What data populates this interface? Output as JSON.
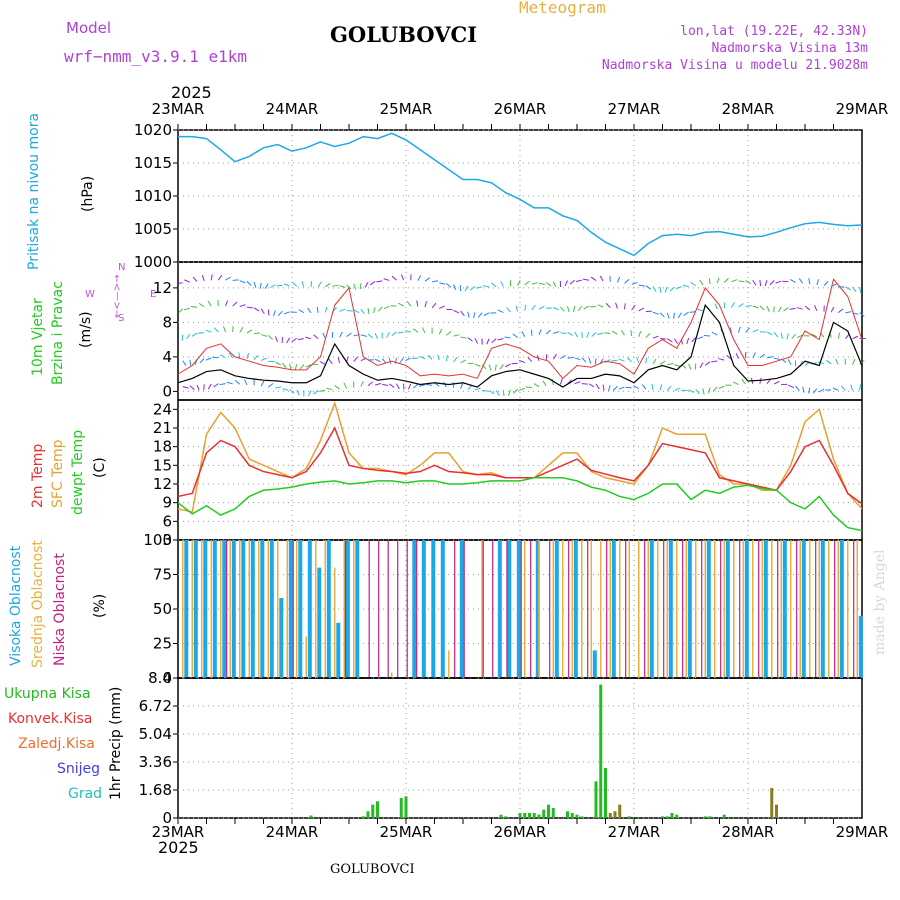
{
  "header": {
    "model_label": "Model",
    "model_value": "wrf−nmm_v3.9.1  e1km",
    "meteogram_label": "Meteogram",
    "station_title": "GOLUBOVCI",
    "coords": "lon,lat (19.22E, 42.33N)",
    "elevation": "Nadmorska Visina 13m",
    "model_elevation": "Nadmorska Visina u modelu 21.9028m",
    "year_top": "2025",
    "year_bottom": "2025",
    "footer_title": "GOLUBOVCI",
    "watermark": "made by Angel"
  },
  "colors": {
    "pressure": "#1ca8e8",
    "wind_label": "#22cc22",
    "temp_2m": "#e83030",
    "temp_sfc": "#e8a030",
    "dewpoint": "#22cc22",
    "cloud_high": "#1ca8e8",
    "cloud_mid": "#e8b040",
    "cloud_low": "#c02080",
    "rain_total": "#22bb22",
    "rain_conv": "#e83030",
    "rain_frz": "#e87030",
    "snow": "#4040e0",
    "hail": "#20c0c0",
    "compass": "#c050e0"
  },
  "x_axis": {
    "dates": [
      "23MAR",
      "24MAR",
      "25MAR",
      "26MAR",
      "27MAR",
      "28MAR",
      "29MAR"
    ]
  },
  "panels": {
    "pressure": {
      "label": "Pritisak na nivou mora",
      "unit": "(hPa)"
    },
    "wind": {
      "label1": "10m Vjetar",
      "label2": "Brzina i Pravac",
      "unit": "(m/s)",
      "compass_top": "←<—>→",
      "compass_w": "W",
      "compass_e": "E",
      "compass_n": "N",
      "compass_s": "S"
    },
    "temp": {
      "label_2m": "2m Temp",
      "label_sfc": "SFC Temp",
      "label_dew": "dewpt Temp",
      "unit": "(C)"
    },
    "cloud": {
      "label_high": "Visoka Oblacnost",
      "label_mid": "Srednja Oblacnost",
      "label_low": "Niska Oblacnost",
      "unit": "(%)"
    },
    "precip": {
      "legend": [
        "Ukupna Kisa",
        "Konvek.Kisa",
        "Zaledj.Kisa",
        "Snijeg",
        "Grad"
      ],
      "unit": "1hr Precip (mm)"
    }
  },
  "chart_data": [
    {
      "type": "line",
      "name": "pressure",
      "x": [
        0,
        3,
        6,
        9,
        12,
        15,
        18,
        21,
        24,
        27,
        30,
        33,
        36,
        39,
        42,
        45,
        48,
        51,
        54,
        57,
        60,
        63,
        66,
        69,
        72,
        75,
        78,
        81,
        84,
        87,
        90,
        93,
        96,
        99,
        102,
        105,
        108,
        111,
        114,
        117,
        120,
        123,
        126,
        129,
        132,
        135,
        138,
        141,
        144
      ],
      "values": [
        1019,
        1019,
        1018.7,
        1017,
        1015.2,
        1016,
        1017.3,
        1017.8,
        1016.8,
        1017.3,
        1018.2,
        1017.5,
        1018,
        1019,
        1018.7,
        1019.5,
        1018.5,
        1017,
        1015.5,
        1014,
        1012.5,
        1012.5,
        1012,
        1010.5,
        1009.5,
        1008.2,
        1008.2,
        1007,
        1006.3,
        1004.5,
        1003,
        1002,
        1001,
        1002.8,
        1004,
        1004.2,
        1004,
        1004.5,
        1004.6,
        1004.2,
        1003.8,
        1003.9,
        1004.5,
        1005.2,
        1005.8,
        1006,
        1005.7,
        1005.5,
        1005.6
      ],
      "ylim": [
        1000,
        1020
      ],
      "yticks": [
        1000,
        1005,
        1010,
        1015,
        1020
      ]
    },
    {
      "type": "line",
      "name": "wind",
      "ylim": [
        -1,
        15
      ],
      "yticks": [
        0,
        4,
        8,
        12
      ],
      "series": [
        {
          "name": "speed",
          "x": [
            0,
            3,
            6,
            9,
            12,
            15,
            18,
            21,
            24,
            27,
            30,
            33,
            36,
            39,
            42,
            45,
            48,
            51,
            54,
            57,
            60,
            63,
            66,
            69,
            72,
            75,
            78,
            81,
            84,
            87,
            90,
            93,
            96,
            99,
            102,
            105,
            108,
            111,
            114,
            117,
            120,
            123,
            126,
            129,
            132,
            135,
            138,
            141,
            144
          ],
          "values": [
            1,
            1.5,
            2.3,
            2.5,
            1.8,
            1.5,
            1.3,
            1.2,
            1,
            1,
            1.8,
            5.5,
            3,
            2,
            1.3,
            1.5,
            1.2,
            0.8,
            1,
            0.8,
            1,
            0.5,
            1.8,
            2.3,
            2.5,
            2,
            1.5,
            0.5,
            1.5,
            1.5,
            2,
            1.8,
            1,
            2.5,
            3,
            2.5,
            4,
            10,
            8,
            3,
            1.2,
            1.3,
            1.5,
            2,
            3.5,
            3,
            8,
            7,
            3
          ]
        },
        {
          "name": "gust",
          "x": [
            0,
            3,
            6,
            9,
            12,
            15,
            18,
            21,
            24,
            27,
            30,
            33,
            36,
            39,
            42,
            45,
            48,
            51,
            54,
            57,
            60,
            63,
            66,
            69,
            72,
            75,
            78,
            81,
            84,
            87,
            90,
            93,
            96,
            99,
            102,
            105,
            108,
            111,
            114,
            117,
            120,
            123,
            126,
            129,
            132,
            135,
            138,
            141,
            144
          ],
          "values": [
            2,
            3,
            5,
            5.5,
            4,
            3.5,
            3,
            2.8,
            2.5,
            2.5,
            4,
            10,
            12,
            4,
            3,
            3.5,
            3,
            1.8,
            2,
            1.8,
            2,
            1.5,
            5,
            5.5,
            5,
            4,
            3.5,
            1.5,
            3,
            2.8,
            3.5,
            3.2,
            2,
            5,
            6,
            5,
            8,
            12,
            10,
            6,
            3,
            3,
            3.5,
            4,
            7,
            6,
            13,
            11,
            6
          ]
        }
      ]
    },
    {
      "type": "line",
      "name": "temperature",
      "ylim": [
        3,
        25.5
      ],
      "yticks": [
        3,
        6,
        9,
        12,
        15,
        18,
        21,
        24
      ],
      "x": [
        0,
        3,
        6,
        9,
        12,
        15,
        18,
        21,
        24,
        27,
        30,
        33,
        36,
        39,
        42,
        45,
        48,
        51,
        54,
        57,
        60,
        63,
        66,
        69,
        72,
        75,
        78,
        81,
        84,
        87,
        90,
        93,
        96,
        99,
        102,
        105,
        108,
        111,
        114,
        117,
        120,
        123,
        126,
        129,
        132,
        135,
        138,
        141,
        144
      ],
      "series": [
        {
          "name": "2m Temp",
          "values": [
            10,
            10.5,
            17,
            19,
            18,
            15,
            14,
            13.5,
            13,
            14,
            17,
            21,
            15,
            14.5,
            14.2,
            14,
            13.7,
            14,
            15,
            14,
            13.8,
            13.5,
            13.5,
            13,
            13,
            13,
            14,
            15,
            16,
            14.2,
            13.6,
            13,
            12.5,
            15,
            18.5,
            18,
            17.5,
            17,
            13,
            12.5,
            12,
            11.5,
            11,
            14,
            18,
            19,
            15,
            10.5,
            8.8
          ]
        },
        {
          "name": "SFC Temp",
          "values": [
            8,
            7.5,
            20,
            23.5,
            21,
            16,
            15,
            14,
            13,
            14.5,
            19,
            25,
            17,
            14.5,
            14.5,
            14,
            13.5,
            15,
            17,
            17,
            14,
            13.5,
            13.8,
            13,
            13,
            13,
            15,
            17,
            17,
            14,
            13,
            12.5,
            12,
            15,
            21,
            20,
            20,
            20,
            13.5,
            12,
            12,
            11,
            11,
            15,
            22,
            24,
            16,
            10.5,
            8
          ]
        },
        {
          "name": "dewpt Temp",
          "values": [
            9,
            7.2,
            8.5,
            7,
            8,
            10,
            11,
            11.2,
            11.5,
            12,
            12.3,
            12.5,
            12,
            12.2,
            12.5,
            12.5,
            12.2,
            12.5,
            12.5,
            12,
            12,
            12.2,
            12.5,
            12.5,
            12.5,
            13,
            13,
            13,
            12.5,
            11.5,
            11,
            10,
            9.5,
            10.5,
            12,
            12,
            9.5,
            11,
            10.5,
            11.5,
            11.8,
            11.3,
            11,
            9,
            8,
            10,
            7,
            5,
            4.5
          ]
        }
      ]
    },
    {
      "type": "bar",
      "name": "cloud",
      "ylim": [
        0,
        100
      ],
      "yticks": [
        0,
        25,
        50,
        75,
        100
      ],
      "series": [
        {
          "name": "Visoka Oblacnost",
          "x": [
            2,
            4,
            6,
            8,
            10,
            12,
            14,
            16,
            18,
            20,
            22,
            24,
            26,
            28,
            30,
            32,
            34,
            36,
            38,
            50,
            52,
            54,
            56,
            60,
            68,
            70,
            72,
            76,
            80,
            84,
            88,
            92,
            100,
            104,
            108,
            112,
            116,
            120,
            124,
            128,
            132,
            136,
            140,
            144
          ],
          "values": [
            100,
            100,
            100,
            100,
            100,
            100,
            100,
            100,
            100,
            100,
            58,
            100,
            100,
            100,
            80,
            100,
            40,
            100,
            100,
            100,
            100,
            100,
            100,
            100,
            100,
            100,
            100,
            100,
            100,
            100,
            20,
            100,
            100,
            100,
            100,
            100,
            100,
            100,
            100,
            100,
            100,
            100,
            100,
            45
          ]
        },
        {
          "name": "Srednja Oblacnost",
          "x": [
            1,
            3,
            5,
            7,
            9,
            11,
            13,
            15,
            17,
            19,
            21,
            23,
            25,
            27,
            29,
            31,
            33,
            35,
            37,
            45,
            57,
            64,
            73,
            76,
            79,
            81,
            83,
            85,
            87,
            89,
            91,
            93,
            95,
            97,
            99,
            101,
            103,
            105,
            107,
            109,
            111,
            113,
            115,
            117,
            119,
            121,
            123,
            125,
            127,
            129,
            131,
            133,
            135,
            137,
            139,
            141,
            143
          ],
          "values": [
            100,
            100,
            100,
            100,
            100,
            100,
            100,
            100,
            100,
            100,
            100,
            100,
            100,
            30,
            100,
            100,
            80,
            100,
            100,
            4,
            20,
            100,
            100,
            100,
            100,
            100,
            100,
            100,
            100,
            100,
            100,
            100,
            100,
            100,
            100,
            100,
            100,
            100,
            100,
            100,
            100,
            100,
            100,
            100,
            100,
            100,
            100,
            100,
            100,
            100,
            100,
            100,
            100,
            100,
            100,
            100,
            100
          ]
        },
        {
          "name": "Niska Oblacnost",
          "x": [
            10,
            24,
            35,
            40,
            42,
            44,
            46,
            48,
            50,
            58,
            60,
            64,
            66,
            69,
            72,
            74,
            78,
            82,
            86,
            90,
            94,
            98,
            102,
            106,
            110,
            114,
            118,
            122,
            126,
            130,
            134,
            138,
            142
          ],
          "values": [
            100,
            100,
            100,
            100,
            100,
            100,
            100,
            100,
            100,
            100,
            100,
            100,
            100,
            100,
            100,
            100,
            100,
            100,
            100,
            100,
            100,
            100,
            100,
            100,
            100,
            100,
            100,
            100,
            100,
            100,
            100,
            100,
            100
          ]
        }
      ]
    },
    {
      "type": "bar",
      "name": "precipitation",
      "ylim": [
        0,
        8.4
      ],
      "yticks": [
        0,
        1.68,
        3.36,
        5.04,
        6.72,
        8.4
      ],
      "series": [
        {
          "name": "Ukupna Kisa",
          "x": [
            28,
            39,
            40,
            41,
            42,
            47,
            48,
            68,
            69,
            72,
            73,
            74,
            75,
            76,
            77,
            78,
            79,
            82,
            83,
            84,
            85,
            88,
            89,
            90,
            95,
            102,
            103,
            104,
            105,
            111,
            112,
            115
          ],
          "values": [
            0.15,
            0.1,
            0.4,
            0.8,
            1.0,
            1.2,
            1.3,
            0.2,
            0.1,
            0.3,
            0.3,
            0.3,
            0.3,
            0.2,
            0.5,
            0.8,
            0.6,
            0.4,
            0.3,
            0.2,
            0.1,
            2.2,
            8.0,
            3.0,
            0.1,
            0.1,
            0.1,
            0.3,
            0.2,
            0.1,
            0.1,
            0.2
          ]
        },
        {
          "name": "Zaledj.Kisa",
          "x": [
            91,
            92,
            93,
            125,
            126
          ],
          "values": [
            0.3,
            0.4,
            0.8,
            1.8,
            0.8
          ]
        }
      ]
    }
  ]
}
